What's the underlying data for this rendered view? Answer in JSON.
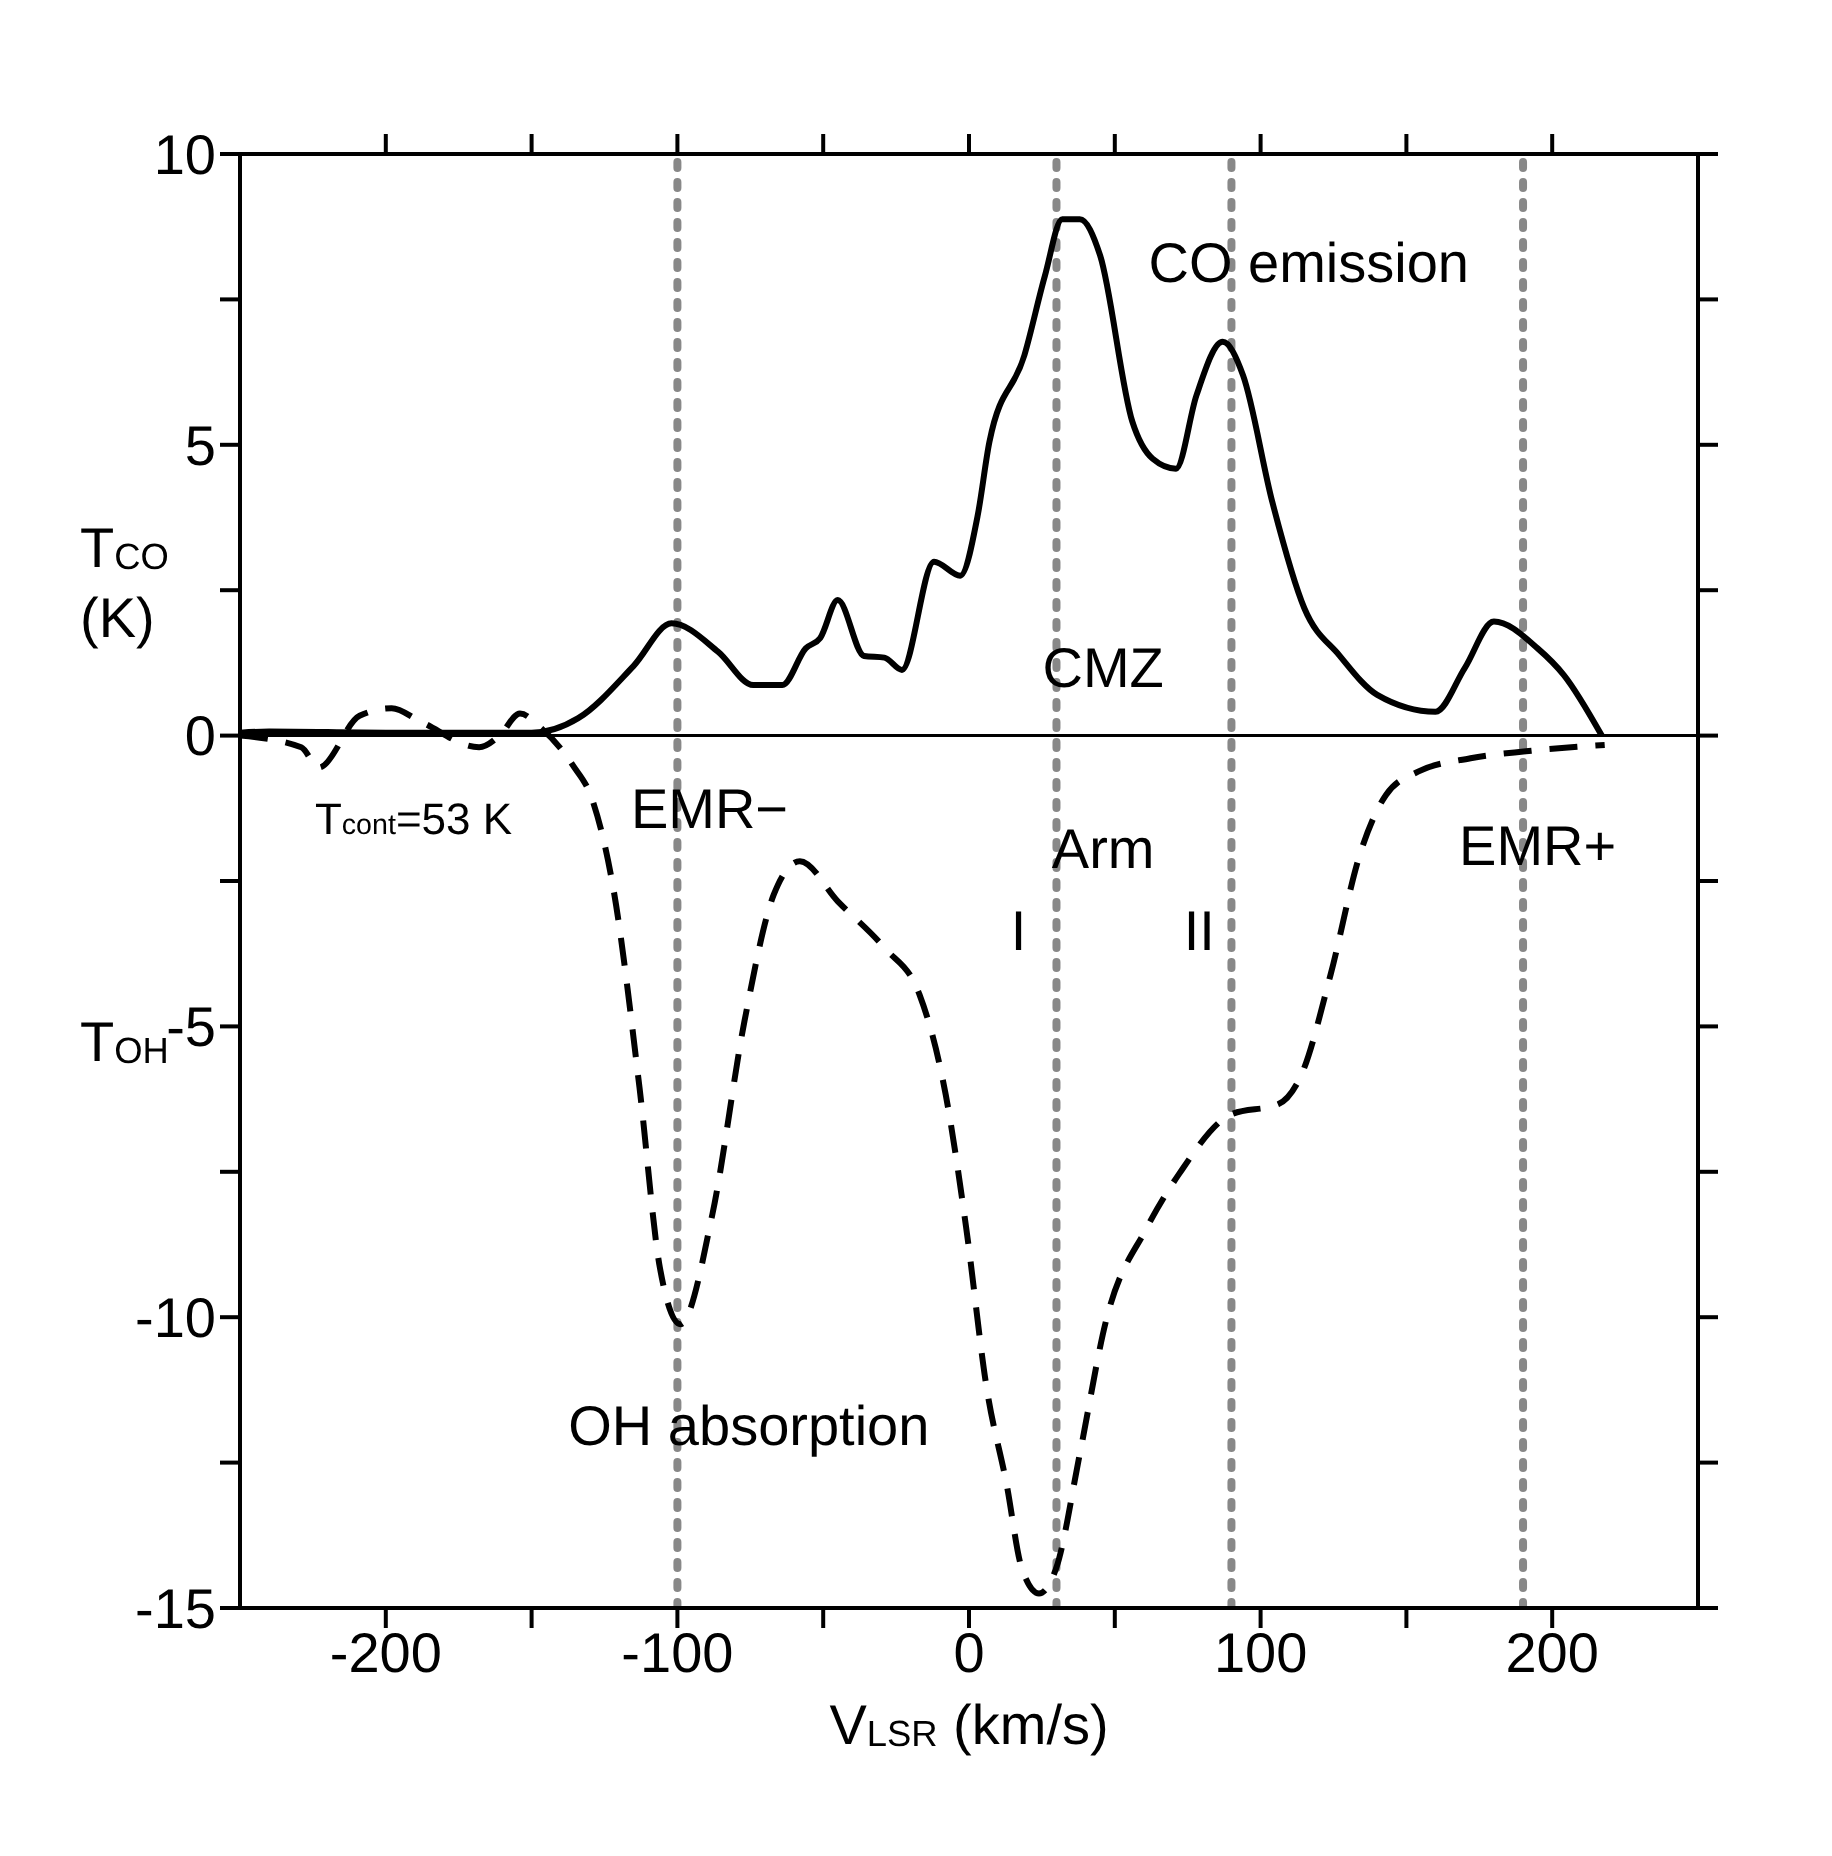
{
  "chart_data": {
    "type": "line",
    "xlabel": "V$_{LSR}$ (km/s)",
    "ylabel": "T$_{CO}$ (K)",
    "xlim": [
      -250,
      250
    ],
    "xticks": [
      -200,
      {
        "value": -150,
        "label": null
      },
      -100,
      {
        "value": -50,
        "label": null
      },
      0,
      {
        "value": 50,
        "label": null
      },
      100,
      {
        "value": 150,
        "label": null
      },
      200
    ],
    "ylim": [
      -15,
      10
    ],
    "yticks": [
      -15,
      {
        "value": -12.5,
        "label": null
      },
      -10,
      {
        "value": -7.5,
        "label": null
      },
      -5,
      {
        "value": -2.5,
        "label": null
      },
      0,
      {
        "value": 2.5,
        "label": null
      },
      5,
      {
        "value": 7.5,
        "label": null
      },
      10
    ],
    "grid": false,
    "marker": "none",
    "series": [
      {
        "color": "#000000",
        "line_style": "solid",
        "x": [
          -250,
          -240,
          -200,
          -150,
          -134,
          -115,
          -102,
          -86,
          -74,
          -64,
          -56,
          -51,
          -45,
          -36,
          -29,
          -23,
          -12,
          -3,
          3,
          7,
          19,
          26,
          32,
          38,
          45,
          56,
          63,
          71,
          78,
          87,
          94,
          104,
          115,
          127,
          140,
          160,
          170,
          180,
          195,
          204,
          217
        ],
        "values": [
          0.05,
          0.07,
          0.05,
          0.05,
          0.3,
          1.2,
          1.93,
          1.44,
          0.87,
          0.87,
          1.5,
          1.68,
          2.33,
          1.37,
          1.34,
          1.13,
          2.99,
          2.75,
          3.79,
          5.05,
          6.54,
          7.9,
          8.88,
          8.88,
          8.25,
          5.4,
          4.76,
          4.59,
          5.85,
          6.77,
          6.19,
          4.02,
          2.19,
          1.38,
          0.7,
          0.41,
          1.16,
          1.96,
          1.5,
          1.04,
          0
        ]
      },
      {
        "color": "#000000",
        "line_style": "dashed",
        "x": [
          -250,
          -229,
          -223,
          -209,
          -198,
          -188,
          -168,
          -161,
          -154,
          -147,
          -136,
          -129,
          -122,
          -113,
          -106,
          -99,
          -88,
          -77,
          -67,
          -58,
          -45,
          -29,
          -17,
          -8,
          -1,
          6,
          13,
          18,
          24,
          30,
          38,
          47,
          61,
          72,
          90,
          106,
          114,
          124,
          134,
          143,
          154,
          172,
          191,
          218
        ],
        "values": [
          0,
          -0.2,
          -0.55,
          0.34,
          0.47,
          0.24,
          -0.2,
          0,
          0.38,
          0.14,
          -0.5,
          -1.13,
          -2.62,
          -6.05,
          -9.15,
          -10.12,
          -8.23,
          -4.91,
          -2.74,
          -2.16,
          -2.85,
          -3.65,
          -4.45,
          -6.17,
          -8.45,
          -11.2,
          -12.9,
          -14.3,
          -14.75,
          -14.3,
          -12.35,
          -10.06,
          -8.46,
          -7.54,
          -6.51,
          -6.34,
          -5.83,
          -4.11,
          -2.05,
          -1.02,
          -0.62,
          -0.39,
          -0.27,
          -0.16
        ]
      }
    ],
    "ref_lines": [
      {
        "axis": "y",
        "value": 0,
        "color": "#000000",
        "line_style": "solid"
      },
      {
        "axis": "x",
        "value": -100,
        "color": "#888888",
        "line_style": "dotted"
      },
      {
        "axis": "x",
        "value": 30,
        "color": "#888888",
        "line_style": "dotted"
      },
      {
        "axis": "x",
        "value": 90,
        "color": "#888888",
        "line_style": "dotted"
      },
      {
        "axis": "x",
        "value": 190,
        "color": "#888888",
        "line_style": "dotted"
      }
    ],
    "annotations": [
      "CO emission",
      "CMZ",
      "Arm",
      "I",
      "II",
      "EMR−",
      "EMR+",
      "OH absorption",
      "T$_{cont}$=53 K",
      "T$_{OH}$"
    ]
  }
}
